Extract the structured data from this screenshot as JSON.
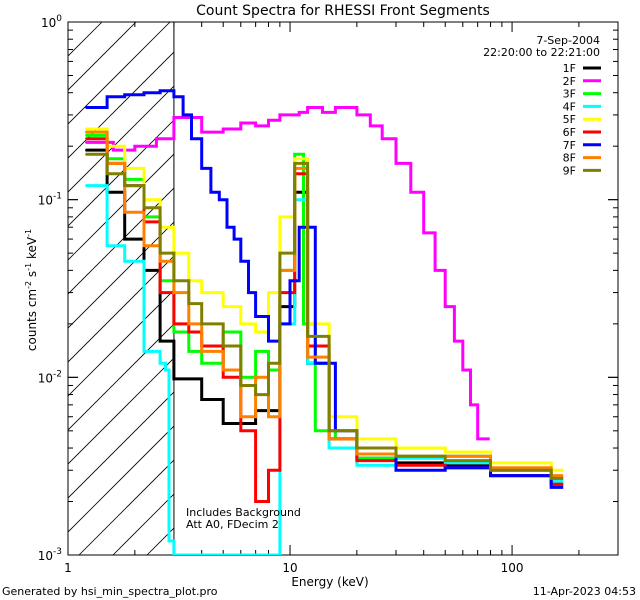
{
  "chart_data": {
    "type": "line",
    "title": "Count Spectra for RHESSI Front Segments",
    "xlabel": "Energy (keV)",
    "ylabel_parts": [
      "counts cm",
      "-2",
      " s",
      "-1",
      " keV",
      "-1"
    ],
    "xscale": "log",
    "yscale": "log",
    "xlim": [
      1,
      300
    ],
    "ylim": [
      0.001,
      1
    ],
    "xticks": [
      {
        "value": 1,
        "label": "1"
      },
      {
        "value": 10,
        "label": "10"
      },
      {
        "value": 100,
        "label": "100"
      }
    ],
    "yticks": [
      {
        "value": 1,
        "base": "10",
        "exp": "0"
      },
      {
        "value": 0.1,
        "base": "10",
        "exp": "-1"
      },
      {
        "value": 0.01,
        "base": "10",
        "exp": "-2"
      },
      {
        "value": 0.001,
        "base": "10",
        "exp": "-3"
      }
    ],
    "date": "7-Sep-2004",
    "time_range": "22:20:00 to 22:21:00",
    "hatched_region_x": [
      1,
      3
    ],
    "annotation": [
      "Includes Background",
      "Att A0, FDecim 2"
    ],
    "legend_position": "top-right",
    "series": [
      {
        "name": "1F",
        "color": "#000000",
        "x": [
          1.2,
          1.5,
          1.8,
          2.2,
          2.6,
          3.0,
          4,
          5,
          7,
          9,
          10.5,
          12,
          15,
          20,
          30,
          50,
          80,
          150
        ],
        "y": [
          0.19,
          0.11,
          0.06,
          0.04,
          0.016,
          0.0098,
          0.0075,
          0.0055,
          0.0065,
          0.025,
          0.11,
          0.012,
          0.0045,
          0.0035,
          0.0033,
          0.0032,
          0.0028,
          0.0025
        ]
      },
      {
        "name": "2F",
        "color": "#ff00ff",
        "x": [
          1.2,
          1.6,
          2.0,
          2.5,
          3.0,
          4,
          5,
          6,
          7,
          8,
          9,
          10,
          11,
          12,
          14,
          16,
          18,
          20,
          23,
          26,
          30,
          35,
          40,
          45,
          50,
          55,
          60,
          65,
          70
        ],
        "y": [
          0.21,
          0.19,
          0.2,
          0.22,
          0.29,
          0.24,
          0.25,
          0.27,
          0.26,
          0.28,
          0.3,
          0.3,
          0.31,
          0.33,
          0.31,
          0.33,
          0.33,
          0.3,
          0.26,
          0.22,
          0.16,
          0.11,
          0.065,
          0.04,
          0.025,
          0.016,
          0.011,
          0.007,
          0.0045
        ]
      },
      {
        "name": "3F",
        "color": "#00ff00",
        "x": [
          1.2,
          1.5,
          1.8,
          2.2,
          2.6,
          3.0,
          3.5,
          4,
          5,
          6,
          7,
          8,
          9,
          10.5,
          11.5,
          13,
          16,
          20,
          30,
          50,
          80,
          150
        ],
        "y": [
          0.23,
          0.17,
          0.13,
          0.08,
          0.035,
          0.018,
          0.014,
          0.012,
          0.018,
          0.01,
          0.014,
          0.011,
          0.04,
          0.18,
          0.02,
          0.005,
          0.0045,
          0.0035,
          0.0036,
          0.0036,
          0.003,
          0.0027
        ]
      },
      {
        "name": "4F",
        "color": "#00ffff",
        "x": [
          1.2,
          1.5,
          1.8,
          2.2,
          2.6,
          2.75,
          2.85,
          3.0,
          4,
          6,
          9,
          10.5,
          12,
          15,
          20,
          30,
          50,
          80,
          150
        ],
        "y": [
          0.12,
          0.055,
          0.045,
          0.014,
          0.012,
          0.011,
          0.0012,
          0.001,
          0.001,
          0.001,
          0.02,
          0.1,
          0.012,
          0.004,
          0.0032,
          0.0035,
          0.0033,
          0.003,
          0.0026
        ]
      },
      {
        "name": "5F",
        "color": "#ffff00",
        "x": [
          1.2,
          1.5,
          1.8,
          2.2,
          2.6,
          3.0,
          3.5,
          4,
          5,
          6,
          7,
          8,
          9,
          10.5,
          12,
          15,
          20,
          30,
          50,
          80,
          150
        ],
        "y": [
          0.25,
          0.2,
          0.15,
          0.1,
          0.07,
          0.05,
          0.035,
          0.03,
          0.025,
          0.02,
          0.018,
          0.03,
          0.08,
          0.17,
          0.02,
          0.006,
          0.0045,
          0.004,
          0.0038,
          0.0033,
          0.003
        ]
      },
      {
        "name": "6F",
        "color": "#ff0000",
        "x": [
          1.2,
          1.5,
          1.8,
          2.2,
          2.6,
          3.0,
          3.5,
          4,
          5,
          6,
          7,
          8,
          9,
          10.5,
          12,
          15,
          20,
          30,
          50,
          80,
          150
        ],
        "y": [
          0.22,
          0.16,
          0.12,
          0.075,
          0.03,
          0.02,
          0.018,
          0.015,
          0.01,
          0.005,
          0.002,
          0.003,
          0.03,
          0.14,
          0.015,
          0.0045,
          0.0034,
          0.0032,
          0.0031,
          0.0028,
          0.0025
        ]
      },
      {
        "name": "7F",
        "color": "#0000ff",
        "x": [
          1.2,
          1.5,
          1.8,
          2.2,
          2.6,
          3.0,
          3.3,
          3.6,
          4.0,
          4.4,
          4.8,
          5.2,
          5.6,
          6,
          6.5,
          7,
          8,
          9,
          10,
          11,
          13,
          16,
          20,
          30,
          50,
          80,
          150
        ],
        "y": [
          0.33,
          0.38,
          0.39,
          0.4,
          0.41,
          0.38,
          0.3,
          0.22,
          0.15,
          0.11,
          0.1,
          0.07,
          0.06,
          0.045,
          0.03,
          0.022,
          0.016,
          0.02,
          0.035,
          0.07,
          0.012,
          0.005,
          0.004,
          0.003,
          0.0031,
          0.0028,
          0.0024
        ]
      },
      {
        "name": "8F",
        "color": "#ff8000",
        "x": [
          1.2,
          1.5,
          1.8,
          2.2,
          2.6,
          3.0,
          3.5,
          4,
          5,
          6,
          7,
          8,
          9,
          10.5,
          12,
          15,
          20,
          30,
          50,
          80,
          150
        ],
        "y": [
          0.24,
          0.16,
          0.085,
          0.055,
          0.045,
          0.03,
          0.02,
          0.014,
          0.011,
          0.006,
          0.01,
          0.006,
          0.04,
          0.15,
          0.013,
          0.0045,
          0.0037,
          0.0036,
          0.0036,
          0.0031,
          0.0028
        ]
      },
      {
        "name": "9F",
        "color": "#808000",
        "x": [
          1.2,
          1.5,
          1.8,
          2.2,
          2.6,
          3.0,
          3.5,
          4,
          5,
          6,
          7,
          8,
          9,
          10.5,
          12,
          15,
          20,
          30,
          50,
          80,
          150
        ],
        "y": [
          0.18,
          0.14,
          0.12,
          0.09,
          0.05,
          0.035,
          0.026,
          0.02,
          0.015,
          0.009,
          0.008,
          0.012,
          0.05,
          0.16,
          0.017,
          0.005,
          0.004,
          0.0036,
          0.0034,
          0.003,
          0.0027
        ]
      }
    ]
  },
  "footer": {
    "left": "Generated by hsi_min_spectra_plot.pro",
    "right": "11-Apr-2023 04:53"
  }
}
